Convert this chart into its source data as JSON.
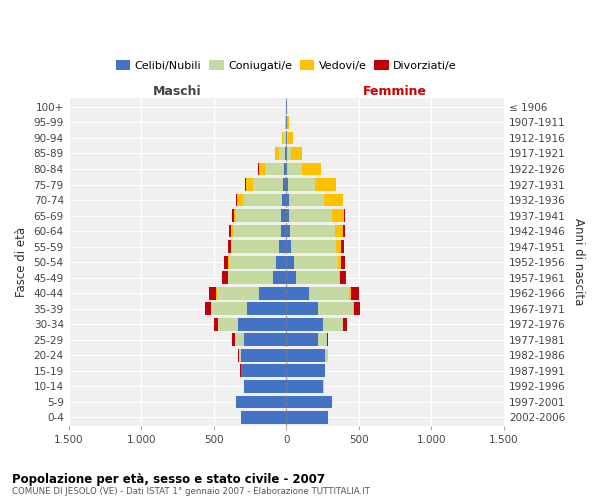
{
  "age_groups": [
    "0-4",
    "5-9",
    "10-14",
    "15-19",
    "20-24",
    "25-29",
    "30-34",
    "35-39",
    "40-44",
    "45-49",
    "50-54",
    "55-59",
    "60-64",
    "65-69",
    "70-74",
    "75-79",
    "80-84",
    "85-89",
    "90-94",
    "95-99",
    "100+"
  ],
  "anni_nascita": [
    "2002-2006",
    "1997-2001",
    "1992-1996",
    "1987-1991",
    "1982-1986",
    "1977-1981",
    "1972-1976",
    "1967-1971",
    "1962-1966",
    "1957-1961",
    "1952-1956",
    "1947-1951",
    "1942-1946",
    "1937-1941",
    "1932-1936",
    "1927-1931",
    "1922-1926",
    "1917-1921",
    "1912-1916",
    "1907-1911",
    "≤ 1906"
  ],
  "maschi_celibi": [
    315,
    345,
    290,
    310,
    310,
    290,
    330,
    270,
    190,
    90,
    70,
    50,
    40,
    35,
    30,
    20,
    15,
    8,
    5,
    3,
    2
  ],
  "maschi_coniugati": [
    0,
    0,
    2,
    4,
    18,
    65,
    140,
    250,
    290,
    310,
    325,
    325,
    330,
    310,
    270,
    210,
    130,
    45,
    15,
    5,
    2
  ],
  "maschi_vedovi": [
    0,
    0,
    0,
    0,
    0,
    0,
    2,
    2,
    2,
    3,
    5,
    7,
    10,
    18,
    40,
    50,
    45,
    25,
    8,
    2,
    0
  ],
  "maschi_divorziati": [
    0,
    0,
    0,
    2,
    5,
    18,
    28,
    38,
    48,
    42,
    28,
    22,
    15,
    10,
    5,
    3,
    2,
    0,
    0,
    0,
    0
  ],
  "femmine_celibi": [
    285,
    315,
    255,
    265,
    270,
    220,
    255,
    220,
    155,
    65,
    50,
    35,
    28,
    22,
    18,
    12,
    8,
    5,
    3,
    2,
    2
  ],
  "femmine_coniugati": [
    0,
    0,
    2,
    4,
    15,
    58,
    135,
    240,
    280,
    295,
    308,
    308,
    310,
    290,
    245,
    185,
    100,
    30,
    10,
    5,
    2
  ],
  "femmine_vedovi": [
    0,
    0,
    0,
    0,
    0,
    2,
    2,
    4,
    8,
    12,
    18,
    32,
    52,
    85,
    125,
    145,
    130,
    75,
    30,
    12,
    3
  ],
  "femmine_divorziati": [
    0,
    0,
    0,
    0,
    3,
    10,
    28,
    42,
    60,
    42,
    28,
    22,
    15,
    10,
    5,
    3,
    2,
    0,
    0,
    0,
    0
  ],
  "color_celibi": "#4472c4",
  "color_coniugati": "#c5d9a0",
  "color_vedovi": "#ffc000",
  "color_divorziati": "#c0000a",
  "color_background": "#f0f0f0",
  "color_grid": "#ffffff",
  "color_maschi_label": "#444444",
  "color_femmine_label": "#cc0000",
  "title": "Popolazione per età, sesso e stato civile - 2007",
  "subtitle": "COMUNE DI JESOLO (VE) - Dati ISTAT 1° gennaio 2007 - Elaborazione TUTTITALIA.IT",
  "ylabel_left": "Fasce di età",
  "ylabel_right": "Anni di nascita",
  "xlabel_left": "Maschi",
  "xlabel_right": "Femmine",
  "xlim": 1500,
  "xticks": [
    -1500,
    -1000,
    -500,
    0,
    500,
    1000,
    1500
  ],
  "xticklabels": [
    "1.500",
    "1.000",
    "500",
    "0",
    "500",
    "1.000",
    "1.500"
  ]
}
